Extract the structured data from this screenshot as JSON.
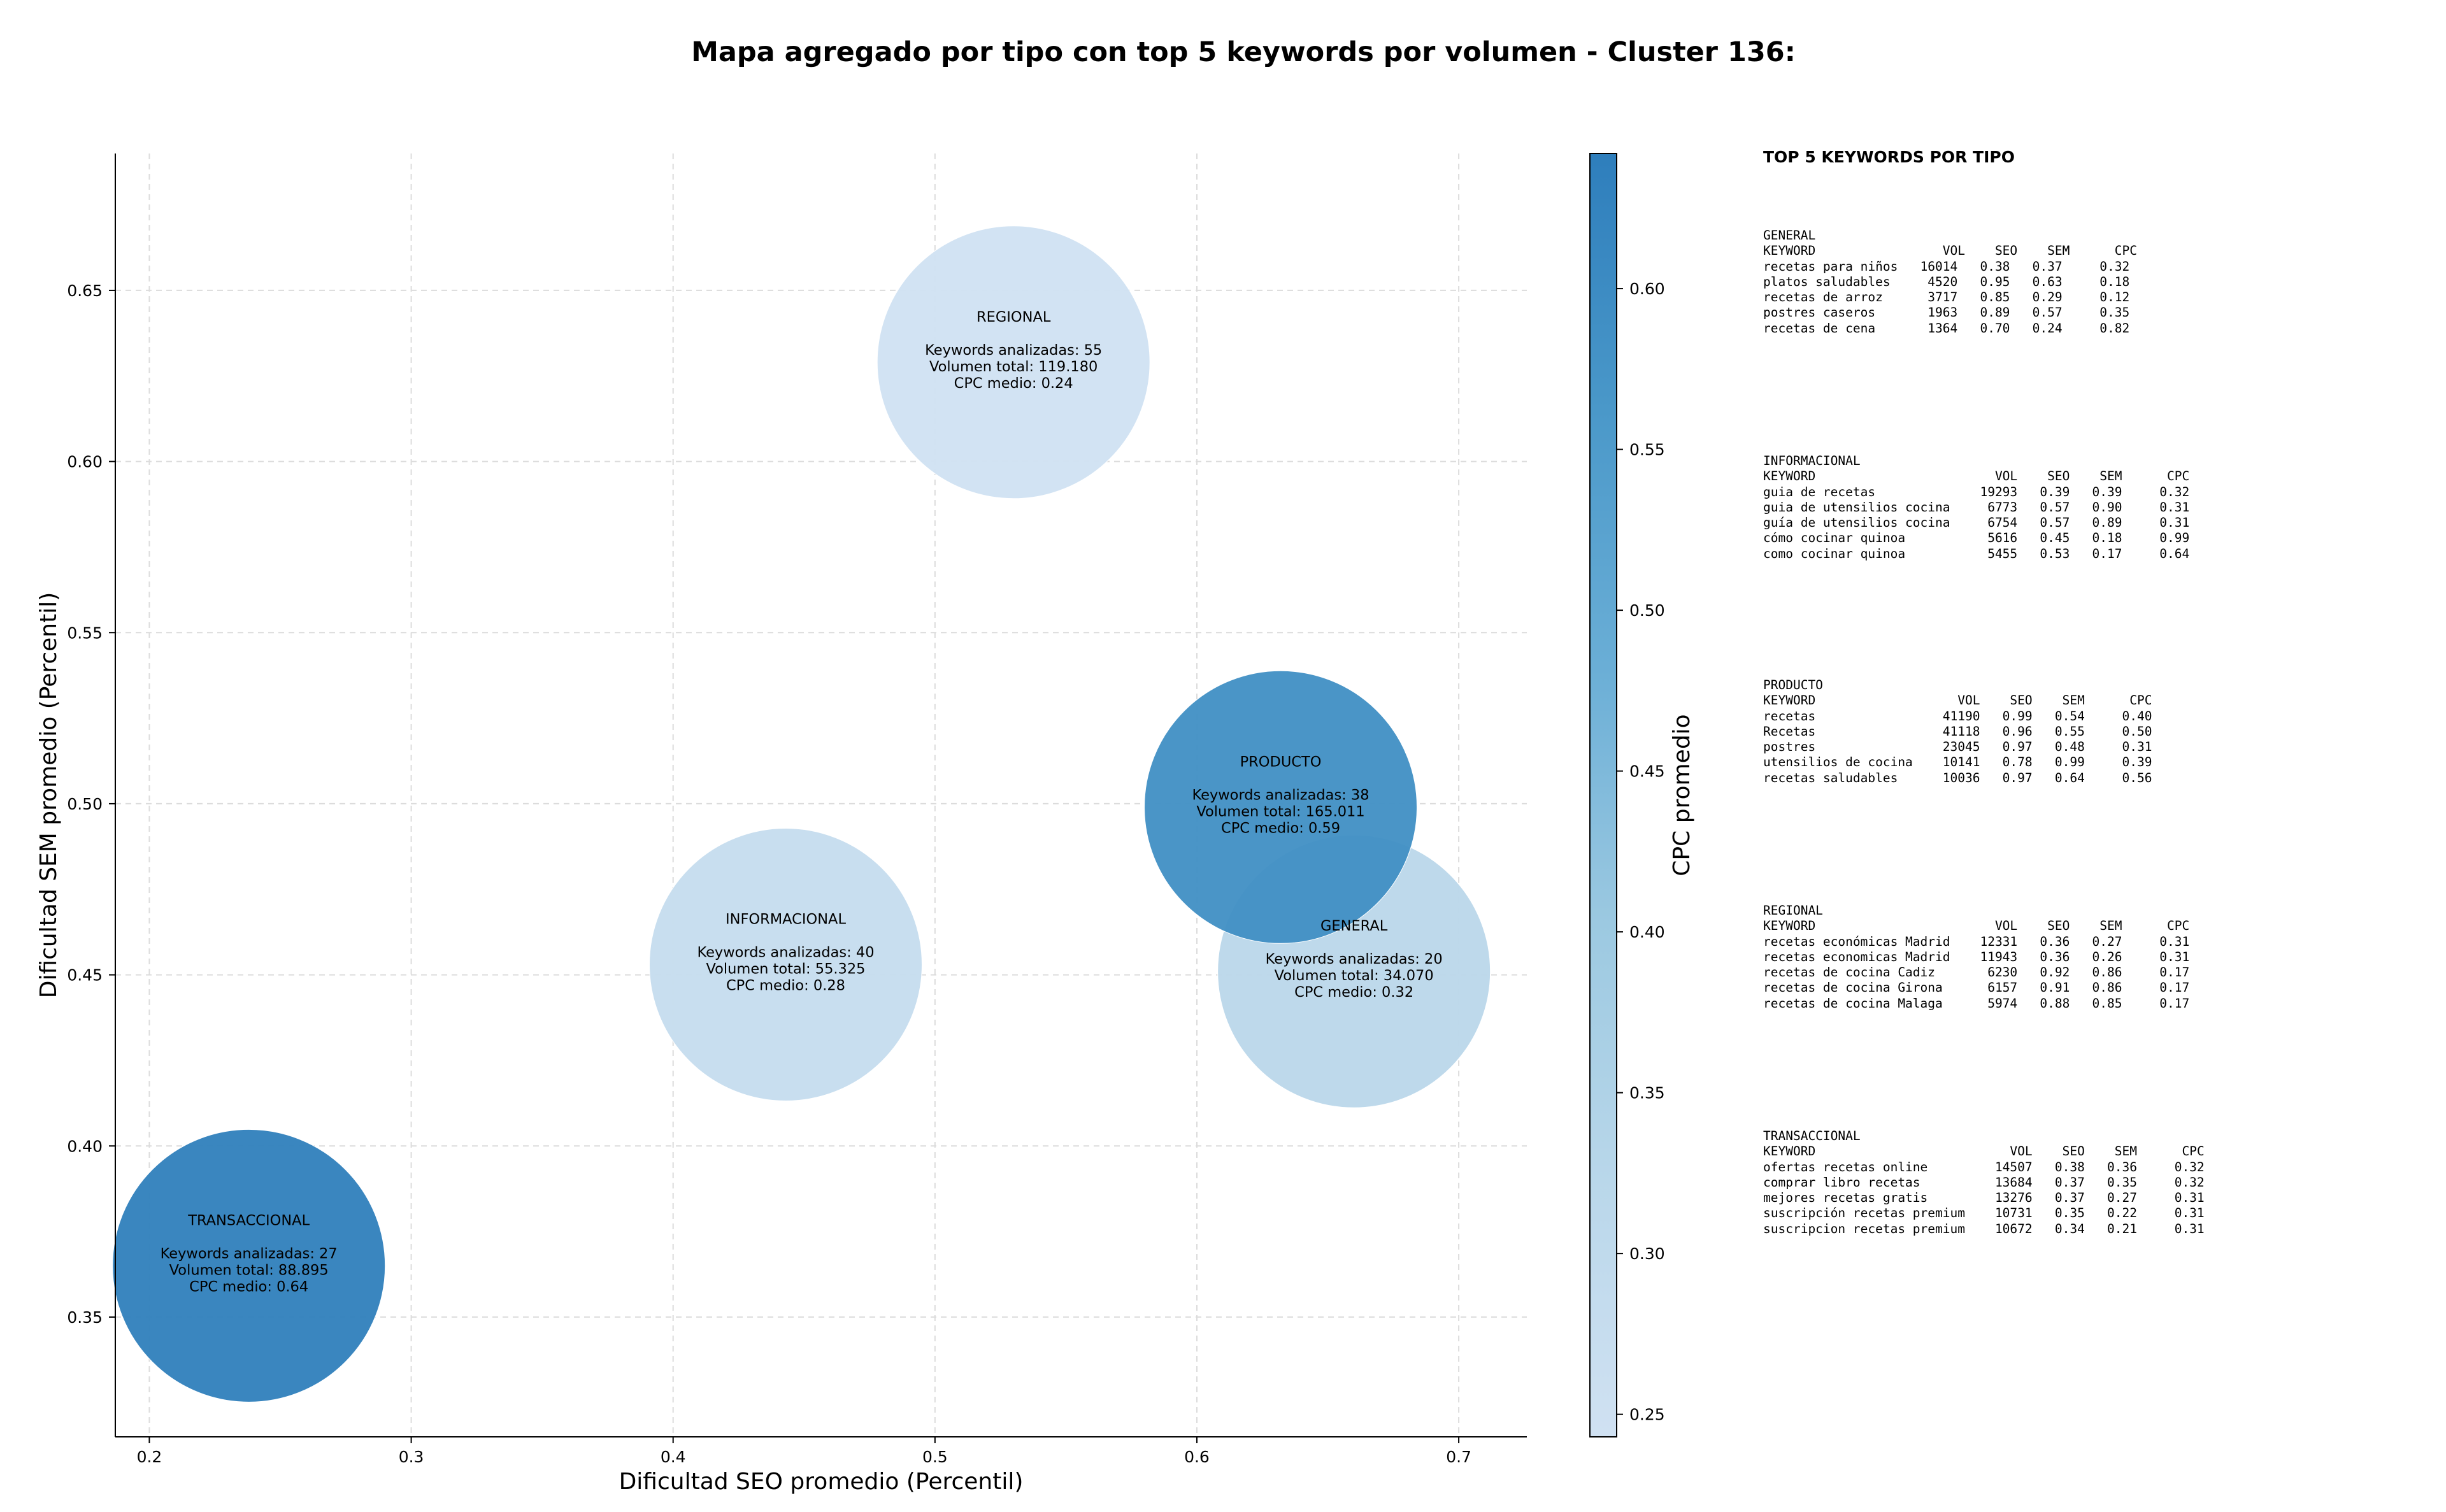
{
  "title": "Mapa agregado por tipo con top 5 keywords por volumen - Cluster 136:",
  "chart_data": {
    "type": "scatter",
    "subtype": "bubble",
    "xlabel": "Dificultad SEO promedio (Percentil)",
    "ylabel": "Dificultad SEM promedio (Percentil)",
    "xlim": [
      0.187,
      0.726
    ],
    "ylim": [
      0.315,
      0.69
    ],
    "xticks": [
      0.2,
      0.3,
      0.4,
      0.5,
      0.6,
      0.7
    ],
    "yticks": [
      0.35,
      0.4,
      0.45,
      0.5,
      0.55,
      0.6,
      0.65
    ],
    "xtick_labels": [
      "0.2",
      "0.3",
      "0.4",
      "0.5",
      "0.6",
      "0.7"
    ],
    "ytick_labels": [
      "0.35",
      "0.40",
      "0.45",
      "0.50",
      "0.55",
      "0.60",
      "0.65"
    ],
    "grid": true,
    "colorbar": {
      "label": "CPC promedio",
      "min": 0.243,
      "max": 0.642,
      "ticks": [
        0.25,
        0.3,
        0.35,
        0.4,
        0.45,
        0.5,
        0.55,
        0.6
      ],
      "tick_labels": [
        "0.25",
        "0.30",
        "0.35",
        "0.40",
        "0.45",
        "0.50",
        "0.55",
        "0.60"
      ],
      "colormap": "Blues"
    },
    "points": [
      {
        "name": "REGIONAL",
        "x": 0.53,
        "y": 0.629,
        "keywords": 55,
        "volume": 119180,
        "cpc": 0.24,
        "lines": [
          "REGIONAL",
          "Keywords analizadas: 55",
          "Volumen total: 119.180",
          "CPC medio: 0.24"
        ]
      },
      {
        "name": "GENERAL",
        "x": 0.66,
        "y": 0.451,
        "keywords": 20,
        "volume": 34070,
        "cpc": 0.32,
        "lines": [
          "GENERAL",
          "Keywords analizadas: 20",
          "Volumen total: 34.070",
          "CPC medio: 0.32"
        ]
      },
      {
        "name": "PRODUCTO",
        "x": 0.632,
        "y": 0.499,
        "keywords": 38,
        "volume": 165011,
        "cpc": 0.59,
        "lines": [
          "PRODUCTO",
          "Keywords analizadas: 38",
          "Volumen total: 165.011",
          "CPC medio: 0.59"
        ]
      },
      {
        "name": "INFORMACIONAL",
        "x": 0.443,
        "y": 0.453,
        "keywords": 40,
        "volume": 55325,
        "cpc": 0.28,
        "lines": [
          "INFORMACIONAL",
          "Keywords analizadas: 40",
          "Volumen total: 55.325",
          "CPC medio: 0.28"
        ]
      },
      {
        "name": "TRANSACCIONAL",
        "x": 0.238,
        "y": 0.365,
        "keywords": 27,
        "volume": 88895,
        "cpc": 0.64,
        "lines": [
          "TRANSACCIONAL",
          "Keywords analizadas: 27",
          "Volumen total: 88.895",
          "CPC medio: 0.64"
        ]
      }
    ]
  },
  "panel": {
    "title": "TOP 5 KEYWORDS POR TIPO",
    "blocks": [
      {
        "type": "GENERAL",
        "text": "GENERAL\nKEYWORD                 VOL    SEO    SEM      CPC\nrecetas para niños   16014   0.38   0.37     0.32\nplatos saludables     4520   0.95   0.63     0.18\nrecetas de arroz      3717   0.85   0.29     0.12\npostres caseros       1963   0.89   0.57     0.35\nrecetas de cena       1364   0.70   0.24     0.82"
      },
      {
        "type": "INFORMACIONAL",
        "text": "INFORMACIONAL\nKEYWORD                        VOL    SEO    SEM      CPC\nguia de recetas              19293   0.39   0.39     0.32\nguia de utensilios cocina     6773   0.57   0.90     0.31\nguía de utensilios cocina     6754   0.57   0.89     0.31\ncómo cocinar quinoa           5616   0.45   0.18     0.99\ncomo cocinar quinoa           5455   0.53   0.17     0.64"
      },
      {
        "type": "PRODUCTO",
        "text": "PRODUCTO\nKEYWORD                   VOL    SEO    SEM      CPC\nrecetas                 41190   0.99   0.54     0.40\nRecetas                 41118   0.96   0.55     0.50\npostres                 23045   0.97   0.48     0.31\nutensilios de cocina    10141   0.78   0.99     0.39\nrecetas saludables      10036   0.97   0.64     0.56"
      },
      {
        "type": "REGIONAL",
        "text": "REGIONAL\nKEYWORD                        VOL    SEO    SEM      CPC\nrecetas económicas Madrid    12331   0.36   0.27     0.31\nrecetas economicas Madrid    11943   0.36   0.26     0.31\nrecetas de cocina Cadiz       6230   0.92   0.86     0.17\nrecetas de cocina Girona      6157   0.91   0.86     0.17\nrecetas de cocina Malaga      5974   0.88   0.85     0.17"
      },
      {
        "type": "TRANSACCIONAL",
        "text": "TRANSACCIONAL\nKEYWORD                          VOL    SEO    SEM      CPC\nofertas recetas online         14507   0.38   0.36     0.32\ncomprar libro recetas          13684   0.37   0.35     0.32\nmejores recetas gratis         13276   0.37   0.27     0.31\nsuscripción recetas premium    10731   0.35   0.22     0.31\nsuscripcion recetas premium    10672   0.34   0.21     0.31"
      }
    ]
  }
}
